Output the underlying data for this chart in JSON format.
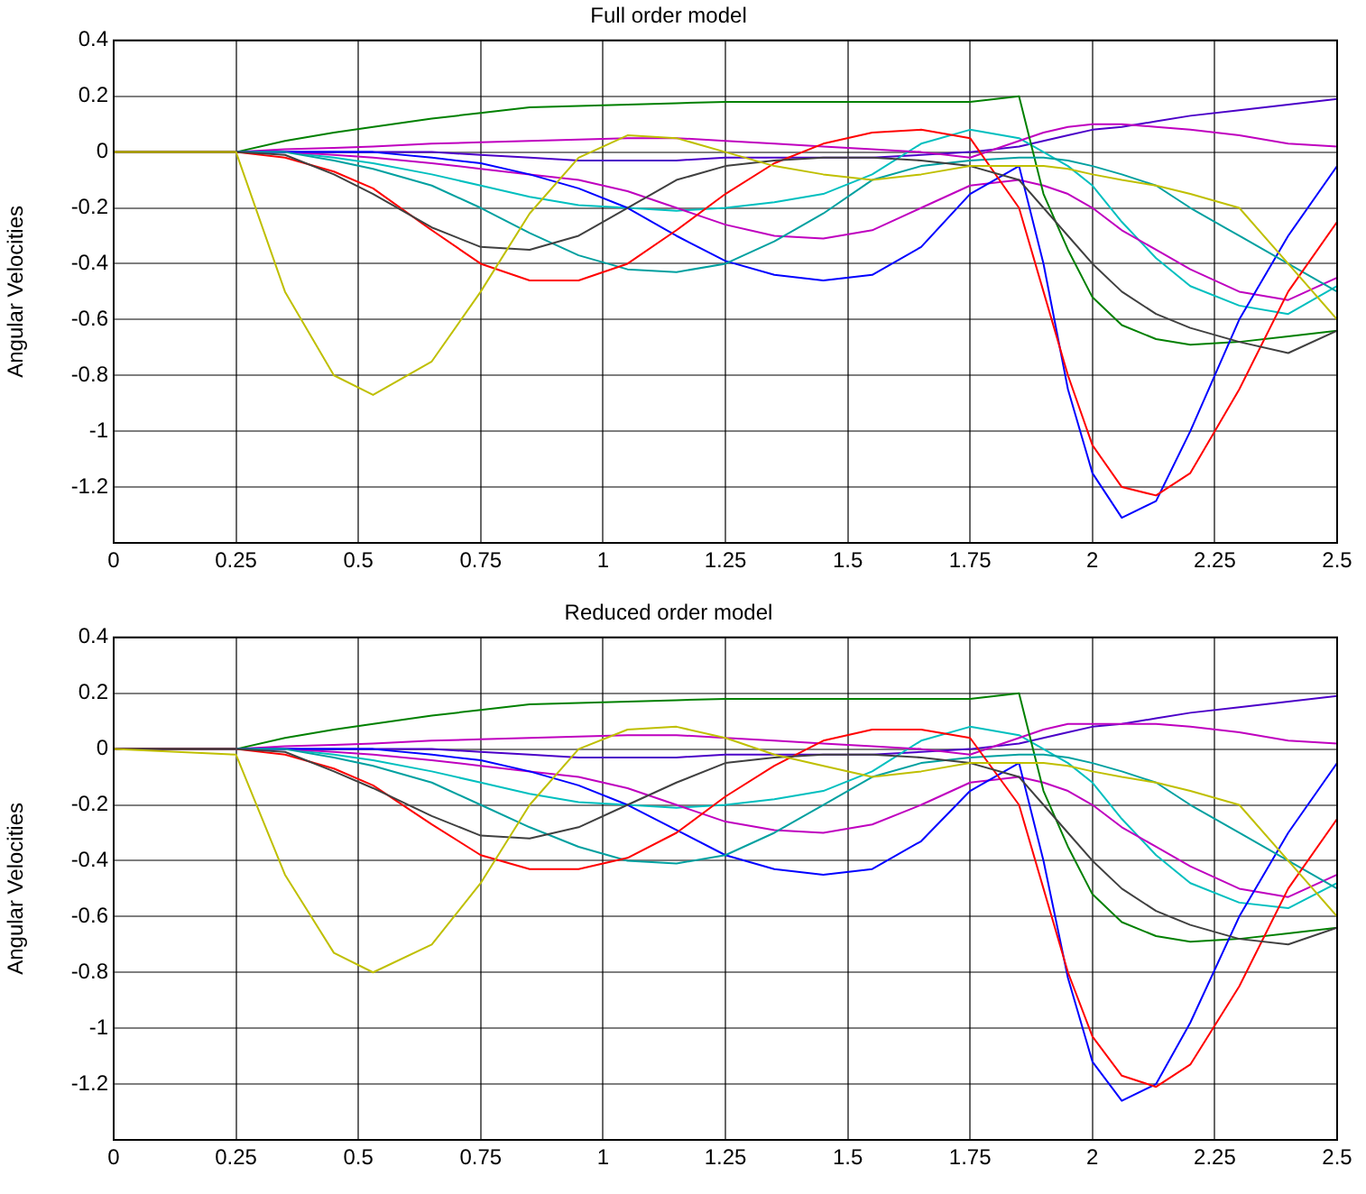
{
  "chart_data": [
    {
      "type": "line",
      "title": "Full order model",
      "ylabel": "Angular Velocities",
      "grid": true,
      "x": [
        0,
        0.25,
        0.35,
        0.45,
        0.53,
        0.65,
        0.75,
        0.85,
        0.95,
        1.05,
        1.15,
        1.25,
        1.35,
        1.45,
        1.55,
        1.65,
        1.75,
        1.85,
        1.9,
        1.95,
        2.0,
        2.06,
        2.13,
        2.2,
        2.3,
        2.4,
        2.5
      ],
      "xlim": [
        0,
        2.5
      ],
      "xticks": [
        0,
        0.25,
        0.5,
        0.75,
        1,
        1.25,
        1.5,
        1.75,
        2,
        2.25,
        2.5
      ],
      "ylim": [
        -1.4,
        0.4
      ],
      "yticks": [
        -1.2,
        -1,
        -0.8,
        -0.6,
        -0.4,
        -0.2,
        0,
        0.2,
        0.4
      ],
      "series": [
        {
          "color": "#bfbf00",
          "values": [
            0,
            0,
            -0.5,
            -0.8,
            -0.87,
            -0.75,
            -0.5,
            -0.22,
            -0.02,
            0.06,
            0.05,
            0,
            -0.05,
            -0.08,
            -0.1,
            -0.08,
            -0.05,
            -0.05,
            -0.05,
            -0.06,
            -0.08,
            -0.1,
            -0.12,
            -0.15,
            -0.2,
            -0.4,
            -0.6
          ]
        },
        {
          "color": "#404040",
          "values": [
            0,
            0,
            -0.01,
            -0.08,
            -0.15,
            -0.27,
            -0.34,
            -0.35,
            -0.3,
            -0.2,
            -0.1,
            -0.05,
            -0.03,
            -0.02,
            -0.02,
            -0.03,
            -0.05,
            -0.1,
            -0.2,
            -0.3,
            -0.4,
            -0.5,
            -0.58,
            -0.63,
            -0.68,
            -0.72,
            -0.64
          ]
        },
        {
          "color": "#ff0000",
          "values": [
            0,
            0,
            -0.02,
            -0.07,
            -0.13,
            -0.28,
            -0.4,
            -0.46,
            -0.46,
            -0.4,
            -0.28,
            -0.15,
            -0.04,
            0.03,
            0.07,
            0.08,
            0.05,
            -0.2,
            -0.5,
            -0.8,
            -1.05,
            -1.2,
            -1.23,
            -1.15,
            -0.85,
            -0.5,
            -0.25
          ]
        },
        {
          "color": "#00a0a0",
          "values": [
            0,
            0,
            0,
            -0.03,
            -0.06,
            -0.12,
            -0.2,
            -0.29,
            -0.37,
            -0.42,
            -0.43,
            -0.4,
            -0.32,
            -0.22,
            -0.1,
            -0.05,
            -0.03,
            -0.02,
            -0.02,
            -0.03,
            -0.05,
            -0.08,
            -0.12,
            -0.2,
            -0.3,
            -0.4,
            -0.5
          ]
        },
        {
          "color": "#0000ff",
          "values": [
            0,
            0,
            0,
            0,
            0,
            -0.02,
            -0.04,
            -0.08,
            -0.13,
            -0.2,
            -0.3,
            -0.39,
            -0.44,
            -0.46,
            -0.44,
            -0.34,
            -0.15,
            -0.05,
            -0.4,
            -0.85,
            -1.15,
            -1.31,
            -1.25,
            -1.0,
            -0.6,
            -0.3,
            -0.05
          ]
        },
        {
          "color": "#008000",
          "values": [
            0,
            0,
            0.04,
            0.07,
            0.09,
            0.12,
            0.14,
            0.16,
            0.165,
            0.17,
            0.175,
            0.18,
            0.18,
            0.18,
            0.18,
            0.18,
            0.18,
            0.2,
            -0.15,
            -0.35,
            -0.52,
            -0.62,
            -0.67,
            -0.69,
            -0.68,
            -0.66,
            -0.64
          ]
        },
        {
          "color": "#bf00bf",
          "values": [
            0,
            0,
            0,
            -0.01,
            -0.02,
            -0.04,
            -0.06,
            -0.08,
            -0.1,
            -0.14,
            -0.2,
            -0.26,
            -0.3,
            -0.31,
            -0.28,
            -0.2,
            -0.12,
            -0.1,
            -0.12,
            -0.15,
            -0.2,
            -0.28,
            -0.35,
            -0.42,
            -0.5,
            -0.53,
            -0.45
          ]
        },
        {
          "color": "#bf00bf",
          "values": [
            0,
            0,
            0.01,
            0.015,
            0.02,
            0.03,
            0.035,
            0.04,
            0.045,
            0.05,
            0.05,
            0.04,
            0.03,
            0.02,
            0.01,
            0,
            -0.02,
            0.04,
            0.07,
            0.09,
            0.1,
            0.1,
            0.09,
            0.08,
            0.06,
            0.03,
            0.02
          ]
        },
        {
          "color": "#00bfbf",
          "values": [
            0,
            0,
            0,
            -0.02,
            -0.04,
            -0.08,
            -0.12,
            -0.16,
            -0.19,
            -0.2,
            -0.21,
            -0.2,
            -0.18,
            -0.15,
            -0.08,
            0.03,
            0.08,
            0.05,
            0,
            -0.05,
            -0.12,
            -0.25,
            -0.38,
            -0.48,
            -0.55,
            -0.58,
            -0.48
          ]
        },
        {
          "color": "#4b00c8",
          "values": [
            0,
            0,
            0,
            0,
            0,
            0,
            -0.01,
            -0.02,
            -0.03,
            -0.03,
            -0.03,
            -0.02,
            -0.02,
            -0.02,
            -0.02,
            -0.01,
            0,
            0.02,
            0.04,
            0.06,
            0.08,
            0.09,
            0.11,
            0.13,
            0.15,
            0.17,
            0.19
          ]
        }
      ]
    },
    {
      "type": "line",
      "title": "Reduced order model",
      "ylabel": "Angular Velocities",
      "grid": true,
      "x": [
        0,
        0.25,
        0.35,
        0.45,
        0.53,
        0.65,
        0.75,
        0.85,
        0.95,
        1.05,
        1.15,
        1.25,
        1.35,
        1.45,
        1.55,
        1.65,
        1.75,
        1.85,
        1.9,
        1.95,
        2.0,
        2.06,
        2.13,
        2.2,
        2.3,
        2.4,
        2.5
      ],
      "xlim": [
        0,
        2.5
      ],
      "xticks": [
        0,
        0.25,
        0.5,
        0.75,
        1,
        1.25,
        1.5,
        1.75,
        2,
        2.25,
        2.5
      ],
      "ylim": [
        -1.4,
        0.4
      ],
      "yticks": [
        -1.2,
        -1,
        -0.8,
        -0.6,
        -0.4,
        -0.2,
        0,
        0.2,
        0.4
      ],
      "series": [
        {
          "color": "#bfbf00",
          "values": [
            0,
            -0.02,
            -0.45,
            -0.73,
            -0.8,
            -0.7,
            -0.48,
            -0.2,
            0,
            0.07,
            0.08,
            0.04,
            -0.02,
            -0.06,
            -0.1,
            -0.08,
            -0.05,
            -0.05,
            -0.05,
            -0.06,
            -0.08,
            -0.1,
            -0.12,
            -0.15,
            -0.2,
            -0.4,
            -0.6
          ]
        },
        {
          "color": "#404040",
          "values": [
            0,
            0,
            -0.01,
            -0.08,
            -0.14,
            -0.24,
            -0.31,
            -0.32,
            -0.28,
            -0.2,
            -0.12,
            -0.05,
            -0.03,
            -0.02,
            -0.02,
            -0.03,
            -0.05,
            -0.1,
            -0.2,
            -0.3,
            -0.4,
            -0.5,
            -0.58,
            -0.63,
            -0.68,
            -0.7,
            -0.64
          ]
        },
        {
          "color": "#ff0000",
          "values": [
            0,
            0,
            -0.02,
            -0.07,
            -0.13,
            -0.27,
            -0.38,
            -0.43,
            -0.43,
            -0.39,
            -0.3,
            -0.17,
            -0.06,
            0.03,
            0.07,
            0.07,
            0.04,
            -0.2,
            -0.5,
            -0.8,
            -1.03,
            -1.17,
            -1.21,
            -1.13,
            -0.85,
            -0.5,
            -0.25
          ]
        },
        {
          "color": "#00a0a0",
          "values": [
            0,
            0,
            0,
            -0.03,
            -0.06,
            -0.12,
            -0.2,
            -0.28,
            -0.35,
            -0.4,
            -0.41,
            -0.38,
            -0.3,
            -0.2,
            -0.1,
            -0.05,
            -0.03,
            -0.02,
            -0.02,
            -0.03,
            -0.05,
            -0.08,
            -0.12,
            -0.2,
            -0.3,
            -0.4,
            -0.5
          ]
        },
        {
          "color": "#0000ff",
          "values": [
            0,
            0,
            0,
            0,
            0,
            -0.02,
            -0.04,
            -0.08,
            -0.13,
            -0.2,
            -0.29,
            -0.38,
            -0.43,
            -0.45,
            -0.43,
            -0.33,
            -0.15,
            -0.05,
            -0.4,
            -0.82,
            -1.12,
            -1.26,
            -1.2,
            -0.98,
            -0.6,
            -0.3,
            -0.05
          ]
        },
        {
          "color": "#008000",
          "values": [
            0,
            0,
            0.04,
            0.07,
            0.09,
            0.12,
            0.14,
            0.16,
            0.165,
            0.17,
            0.175,
            0.18,
            0.18,
            0.18,
            0.18,
            0.18,
            0.18,
            0.2,
            -0.15,
            -0.35,
            -0.52,
            -0.62,
            -0.67,
            -0.69,
            -0.68,
            -0.66,
            -0.64
          ]
        },
        {
          "color": "#bf00bf",
          "values": [
            0,
            0,
            0,
            -0.01,
            -0.02,
            -0.04,
            -0.06,
            -0.08,
            -0.1,
            -0.14,
            -0.2,
            -0.26,
            -0.29,
            -0.3,
            -0.27,
            -0.2,
            -0.12,
            -0.1,
            -0.12,
            -0.15,
            -0.2,
            -0.28,
            -0.35,
            -0.42,
            -0.5,
            -0.53,
            -0.45
          ]
        },
        {
          "color": "#bf00bf",
          "values": [
            0,
            0,
            0.01,
            0.015,
            0.02,
            0.03,
            0.035,
            0.04,
            0.045,
            0.05,
            0.05,
            0.04,
            0.03,
            0.02,
            0.01,
            0,
            -0.02,
            0.04,
            0.07,
            0.09,
            0.09,
            0.09,
            0.09,
            0.08,
            0.06,
            0.03,
            0.02
          ]
        },
        {
          "color": "#00bfbf",
          "values": [
            0,
            0,
            0,
            -0.02,
            -0.04,
            -0.08,
            -0.12,
            -0.16,
            -0.19,
            -0.2,
            -0.21,
            -0.2,
            -0.18,
            -0.15,
            -0.08,
            0.03,
            0.08,
            0.05,
            0,
            -0.05,
            -0.12,
            -0.25,
            -0.38,
            -0.48,
            -0.55,
            -0.57,
            -0.48
          ]
        },
        {
          "color": "#4b00c8",
          "values": [
            0,
            0,
            0,
            0,
            0,
            0,
            -0.01,
            -0.02,
            -0.03,
            -0.03,
            -0.03,
            -0.02,
            -0.02,
            -0.02,
            -0.02,
            -0.01,
            0,
            0.02,
            0.04,
            0.06,
            0.08,
            0.09,
            0.11,
            0.13,
            0.15,
            0.17,
            0.19
          ]
        }
      ]
    }
  ]
}
